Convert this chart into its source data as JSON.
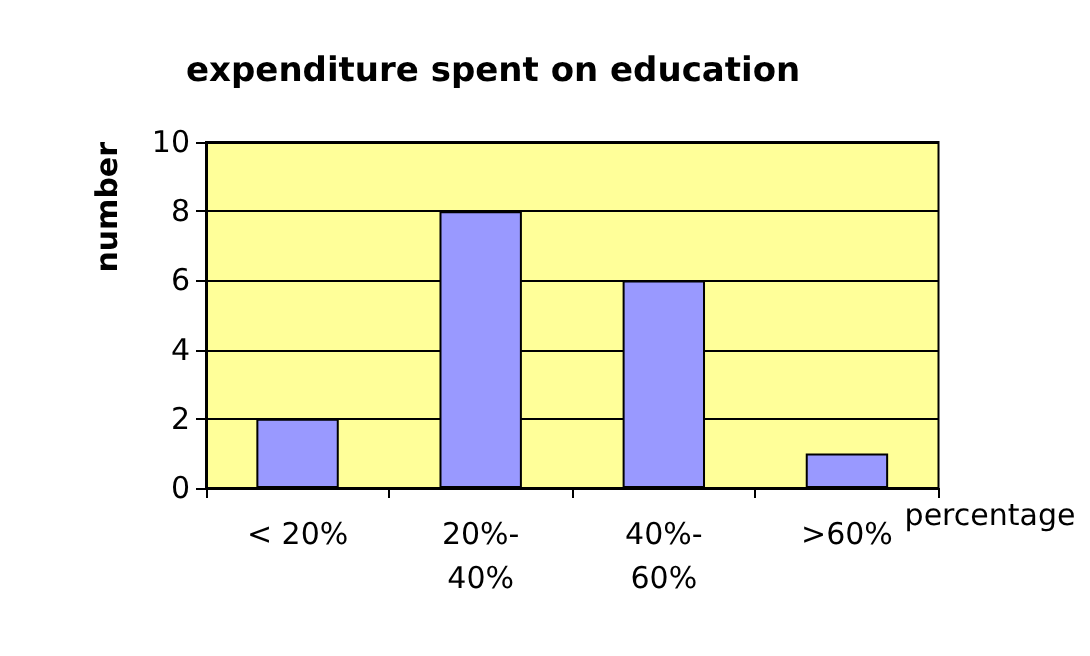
{
  "chart_data": {
    "type": "bar",
    "title": "expenditure spent on education",
    "xlabel": "percentage",
    "ylabel": "number",
    "categories": [
      "< 20%",
      "20%-40%",
      "40%-60%",
      ">60%"
    ],
    "values": [
      2,
      8,
      6,
      1
    ],
    "color": "#9999ff",
    "ylim": [
      0,
      10
    ],
    "yticks": [
      0,
      2,
      4,
      6,
      8,
      10
    ],
    "grid": "y"
  }
}
